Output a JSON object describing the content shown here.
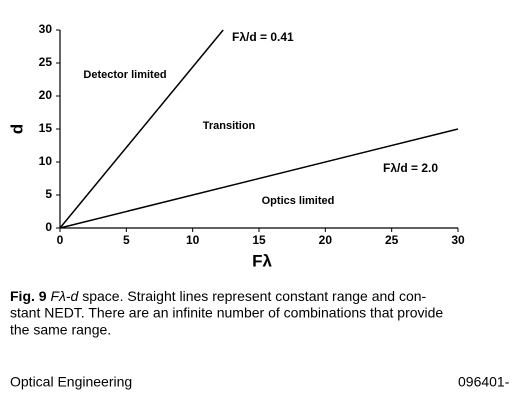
{
  "chart_data": {
    "type": "line",
    "xlabel": "Fλ",
    "ylabel": "d",
    "xlim": [
      0,
      30
    ],
    "ylim": [
      0,
      30
    ],
    "xticks": [
      0,
      5,
      10,
      15,
      20,
      25,
      30
    ],
    "yticks": [
      0,
      5,
      10,
      15,
      20,
      25,
      30
    ],
    "series": [
      {
        "name": "Fλ/d = 0.41",
        "color": "#000000",
        "x": [
          0,
          12.3
        ],
        "values": [
          0,
          30
        ]
      },
      {
        "name": "Fλ/d = 2.0",
        "color": "#000000",
        "x": [
          0,
          30
        ],
        "values": [
          0,
          15
        ]
      }
    ],
    "annotations": [
      "Detector limited",
      "Transition",
      "Optics limited"
    ]
  },
  "caption": {
    "label": "Fig. 9",
    "term": "Fλ-d",
    "lines": [
      "space. Straight lines represent constant range and con-",
      "stant NEDT. There are an infinite number of combinations that provide",
      "the same range."
    ]
  },
  "footer": {
    "journal": "Optical Engineering",
    "page": "096401-"
  }
}
